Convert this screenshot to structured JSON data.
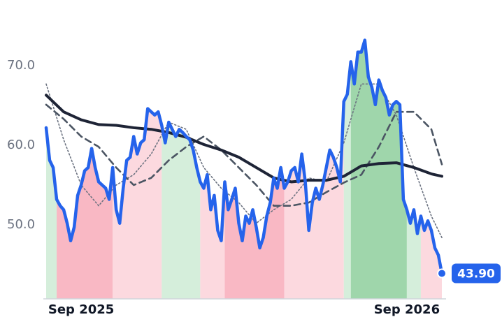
{
  "chart_data": {
    "type": "line",
    "xlim": [
      0,
      113
    ],
    "xticks": [
      {
        "value": 10,
        "label": "Sep 2025"
      },
      {
        "value": 103,
        "label": "Sep 2026"
      }
    ],
    "ylim": [
      40.7,
      78.25
    ],
    "yticks": [
      {
        "value": 50,
        "label": "50.0"
      },
      {
        "value": 60,
        "label": "60.0"
      },
      {
        "value": 70,
        "label": "70.0"
      }
    ],
    "grid": false,
    "regions": [
      {
        "x": [
          0,
          3
        ],
        "color": "#d5eedb"
      },
      {
        "x": [
          3,
          19
        ],
        "color": "#f9b8c4"
      },
      {
        "x": [
          19,
          33
        ],
        "color": "#fcd9df"
      },
      {
        "x": [
          33,
          44
        ],
        "color": "#d5eedb"
      },
      {
        "x": [
          44,
          51
        ],
        "color": "#fcd9df"
      },
      {
        "x": [
          51,
          68
        ],
        "color": "#f9b8c4"
      },
      {
        "x": [
          68,
          85
        ],
        "color": "#fcd9df"
      },
      {
        "x": [
          85,
          87
        ],
        "color": "#d5eedb"
      },
      {
        "x": [
          87,
          103
        ],
        "color": "#9fd6ab"
      },
      {
        "x": [
          103,
          107
        ],
        "color": "#d5eedb"
      },
      {
        "x": [
          107,
          113
        ],
        "color": "#fcd9df"
      }
    ],
    "series": [
      {
        "color": "#6b7280",
        "width": 1.6,
        "dash": "2 3",
        "x": [
          0,
          5,
          10,
          15,
          20,
          25,
          30,
          35,
          40,
          45,
          50,
          55,
          60,
          65,
          70,
          75,
          80,
          85,
          90,
          95,
          100,
          105,
          110,
          113
        ],
        "values": [
          67.7,
          60.7,
          55,
          52.4,
          55,
          56.3,
          58.9,
          62.9,
          62,
          57.2,
          54.6,
          52.8,
          50.2,
          51.9,
          53.2,
          55.9,
          55.4,
          60.3,
          67.7,
          67.7,
          63.8,
          57.2,
          51.1,
          48.4
        ]
      },
      {
        "color": "#4b5563",
        "width": 2.6,
        "dash": "9 6",
        "x": [
          0,
          5,
          10,
          15,
          20,
          25,
          30,
          35,
          40,
          45,
          50,
          55,
          60,
          65,
          70,
          75,
          80,
          85,
          90,
          95,
          100,
          105,
          110,
          113
        ],
        "values": [
          65.1,
          63.3,
          61.1,
          59.8,
          57.2,
          55,
          55.9,
          58.1,
          59.8,
          61.1,
          59.4,
          57.2,
          55,
          52.4,
          52.4,
          52.8,
          54.1,
          55.3,
          56.3,
          59.8,
          64.2,
          64.2,
          62,
          57.6
        ]
      },
      {
        "color": "#1e2436",
        "width": 4,
        "x": [
          0,
          5,
          10,
          15,
          20,
          25,
          30,
          35,
          40,
          45,
          50,
          55,
          60,
          65,
          70,
          75,
          80,
          85,
          90,
          95,
          100,
          105,
          110,
          113
        ],
        "values": [
          66.3,
          64.2,
          63.2,
          62.6,
          62.5,
          62.2,
          62,
          61.6,
          61,
          60.1,
          59.4,
          58.5,
          57.2,
          55.9,
          55.4,
          55.6,
          55.6,
          56.1,
          57.4,
          57.7,
          57.8,
          57.2,
          56.4,
          56.1
        ]
      },
      {
        "color": "#2563eb",
        "width": 4.5,
        "main": true,
        "x": [
          0,
          1,
          2,
          3,
          4,
          5,
          6,
          7,
          8,
          9,
          10,
          11,
          12,
          13,
          14,
          15,
          16,
          17,
          18,
          19,
          20,
          21,
          22,
          23,
          24,
          25,
          26,
          27,
          28,
          29,
          30,
          31,
          32,
          33,
          34,
          35,
          36,
          37,
          38,
          39,
          40,
          41,
          42,
          43,
          44,
          45,
          46,
          47,
          48,
          49,
          50,
          51,
          52,
          53,
          54,
          55,
          56,
          57,
          58,
          59,
          60,
          61,
          62,
          63,
          64,
          65,
          66,
          67,
          68,
          69,
          70,
          71,
          72,
          73,
          74,
          75,
          76,
          77,
          78,
          79,
          80,
          81,
          82,
          83,
          84,
          85,
          86,
          87,
          88,
          89,
          90,
          91,
          92,
          93,
          94,
          95,
          96,
          97,
          98,
          99,
          100,
          101,
          102,
          103,
          104,
          105,
          106,
          107,
          108,
          109,
          110,
          111,
          112,
          113
        ],
        "values": [
          62.2,
          58.1,
          57.2,
          53.2,
          52.4,
          51.9,
          50.2,
          48.0,
          49.7,
          53.7,
          55.0,
          56.8,
          57.2,
          59.6,
          57.2,
          55.4,
          55.0,
          54.6,
          53.2,
          57.2,
          51.9,
          50.2,
          54.6,
          58.1,
          58.5,
          61.1,
          58.9,
          60.3,
          60.7,
          64.6,
          64.2,
          63.8,
          64.2,
          62.5,
          60.3,
          62.9,
          62.0,
          61.1,
          62.0,
          61.6,
          61.1,
          60.7,
          59.4,
          57.2,
          55.4,
          54.6,
          56.3,
          51.9,
          53.7,
          49.3,
          48.0,
          55.4,
          51.9,
          53.2,
          54.6,
          50.2,
          48.0,
          51.1,
          50.2,
          51.9,
          49.7,
          47.1,
          48.4,
          51.1,
          52.8,
          55.9,
          54.6,
          57.2,
          54.6,
          55.4,
          56.8,
          57.2,
          55.4,
          58.9,
          55.4,
          49.3,
          52.8,
          54.6,
          53.2,
          55.0,
          57.2,
          59.4,
          58.5,
          57.2,
          55.4,
          65.5,
          66.4,
          70.5,
          67.7,
          71.7,
          71.7,
          73.2,
          68.6,
          67.3,
          65.1,
          68.2,
          66.9,
          66.0,
          63.8,
          65.1,
          65.5,
          65.1,
          53.2,
          51.9,
          50.2,
          51.9,
          48.9,
          51.1,
          49.3,
          50.5,
          49.3,
          47.1,
          46.2,
          43.9
        ],
        "value_labels": [
          null,
          null,
          null,
          null,
          null,
          null,
          null,
          null,
          null,
          null,
          null,
          null,
          null,
          null,
          null,
          null,
          null,
          null,
          null,
          null,
          null,
          null,
          null,
          null,
          null,
          null,
          null,
          null,
          null,
          null,
          null,
          null,
          null,
          null,
          null,
          null,
          null,
          null,
          null,
          null,
          null,
          null,
          null,
          null,
          null,
          null,
          null,
          null,
          null,
          null,
          null,
          null,
          null,
          null,
          null,
          null,
          null,
          null,
          null,
          null,
          null,
          null,
          null,
          null,
          null,
          null,
          null,
          null,
          null,
          null,
          null,
          null,
          null,
          null,
          null,
          null,
          null,
          null,
          null,
          null,
          null,
          null,
          null,
          null,
          null,
          null,
          null,
          null,
          null,
          null,
          null,
          null,
          null,
          null,
          null,
          null,
          null,
          null,
          null,
          null,
          null,
          null,
          null,
          null,
          null,
          null,
          null,
          null,
          null,
          null,
          null,
          null,
          null,
          "43.90"
        ]
      }
    ]
  }
}
